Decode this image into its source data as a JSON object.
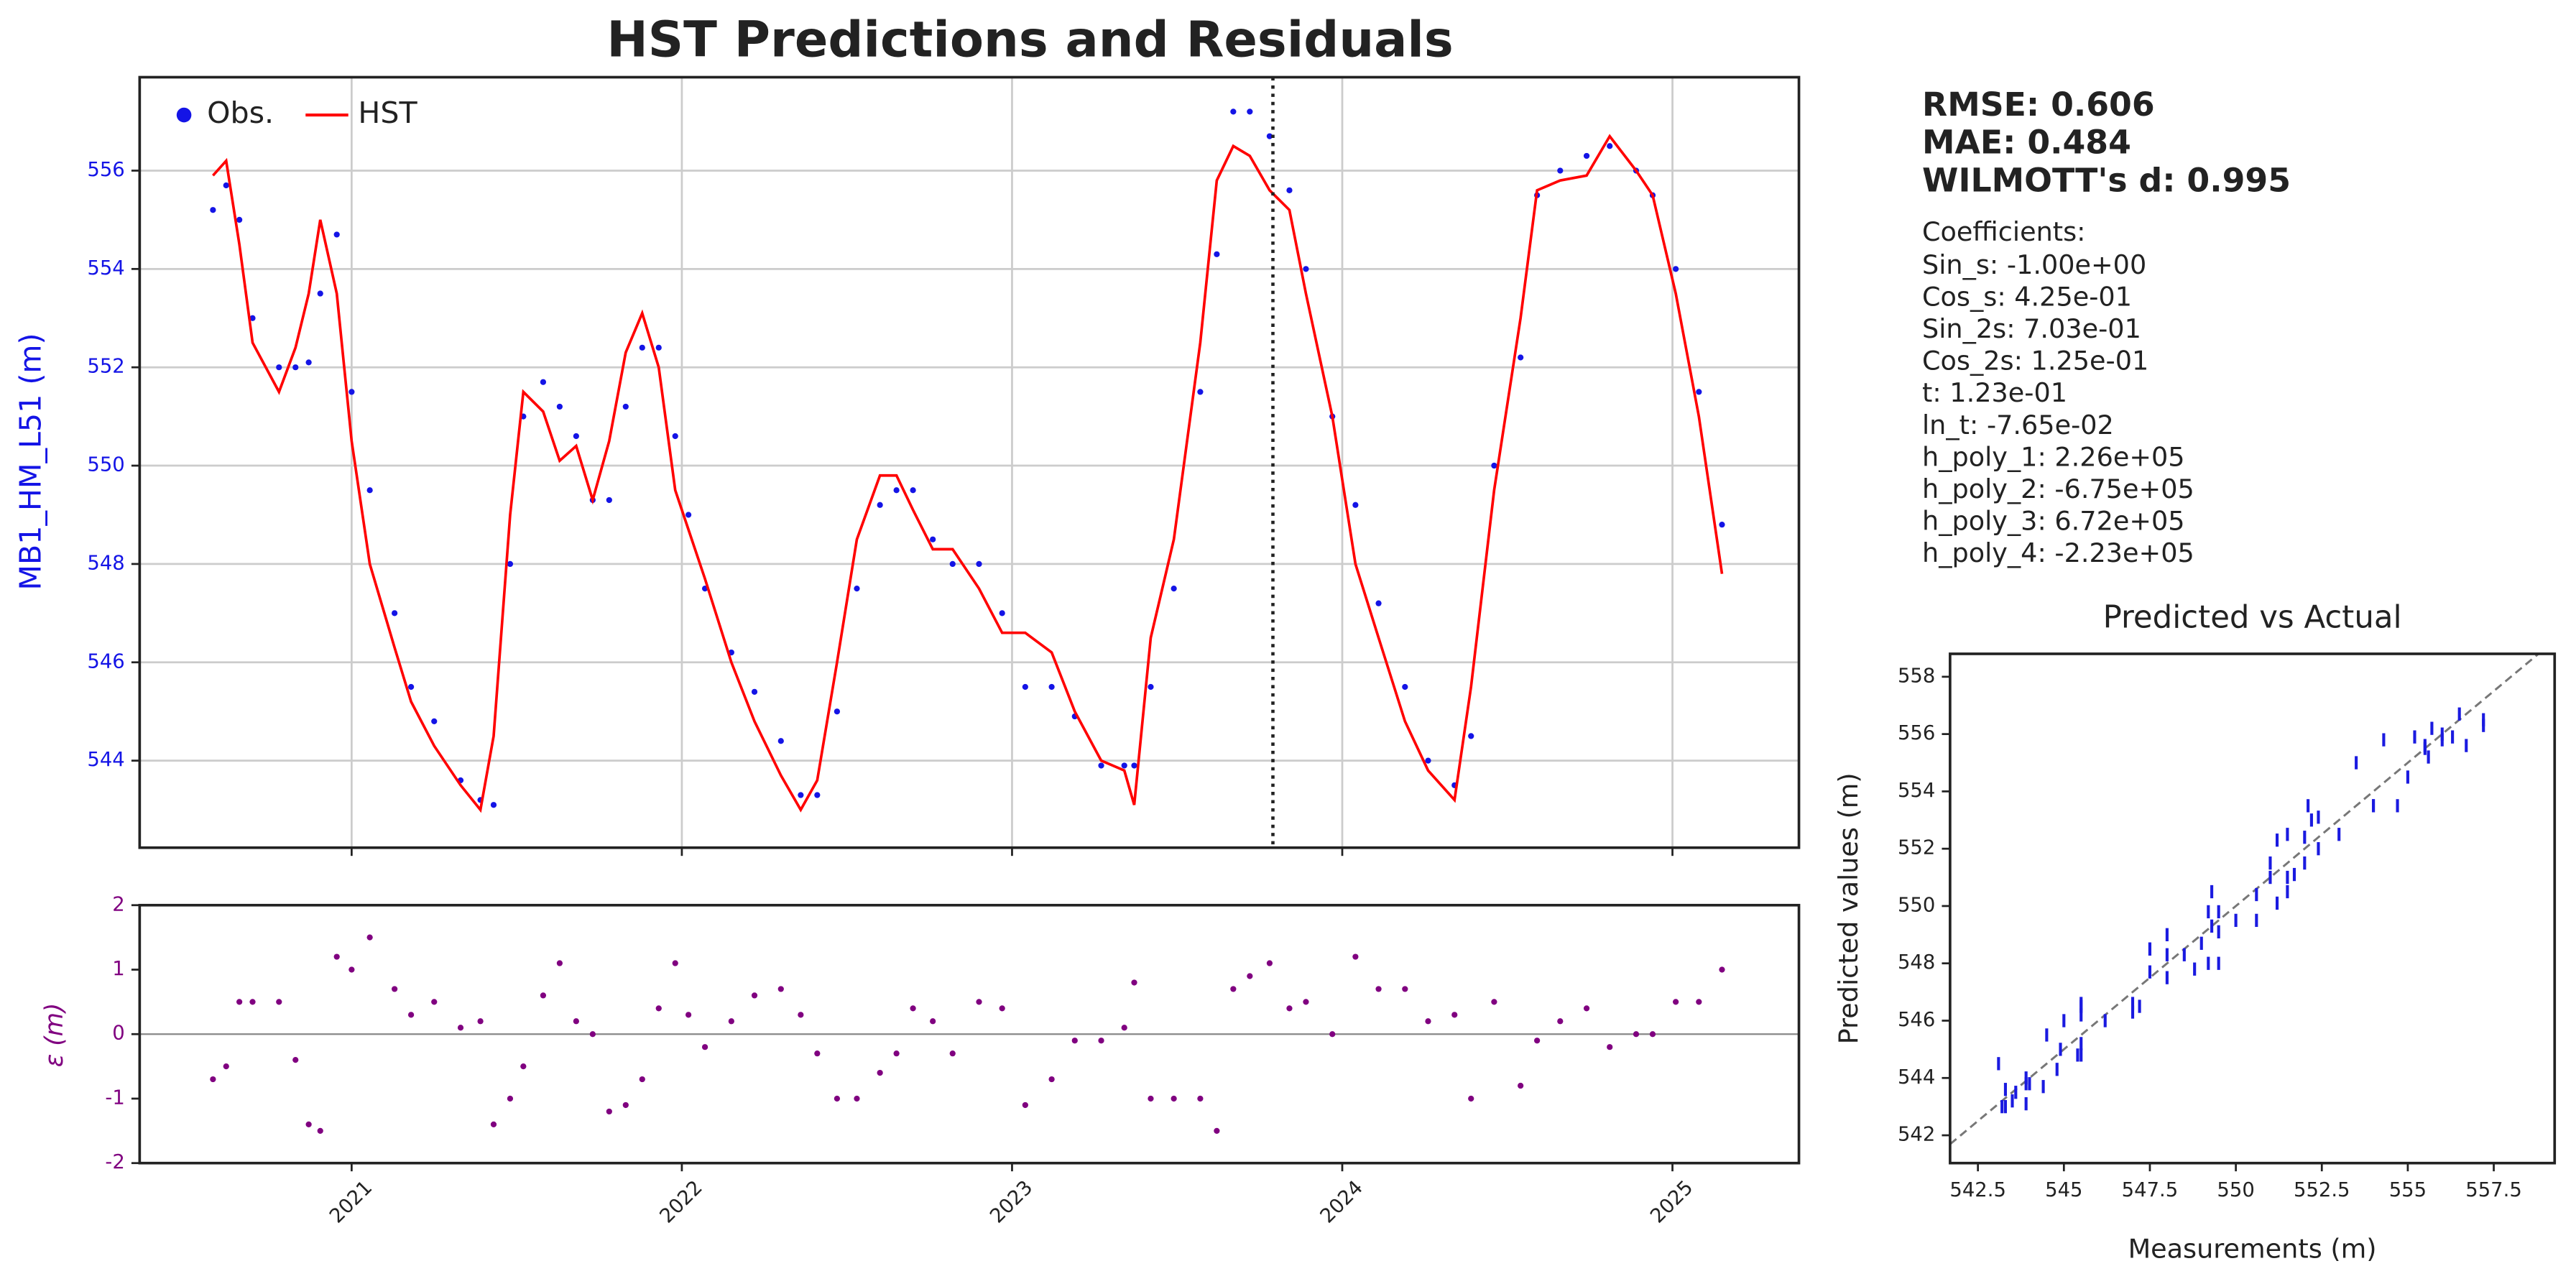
{
  "chart_data": [
    {
      "type": "line",
      "title": "HST Predictions and Residuals",
      "ylabel": "MB1_HM_L51 (m)",
      "x": [
        2020.58,
        2020.62,
        2020.66,
        2020.7,
        2020.78,
        2020.83,
        2020.87,
        2020.905,
        2020.955,
        2021.0,
        2021.055,
        2021.13,
        2021.18,
        2021.25,
        2021.33,
        2021.39,
        2021.43,
        2021.48,
        2021.52,
        2021.58,
        2021.63,
        2021.68,
        2021.73,
        2021.78,
        2021.83,
        2021.88,
        2021.93,
        2021.98,
        2022.02,
        2022.07,
        2022.15,
        2022.22,
        2022.3,
        2022.36,
        2022.41,
        2022.47,
        2022.53,
        2022.6,
        2022.65,
        2022.7,
        2022.76,
        2022.82,
        2022.9,
        2022.97,
        2023.04,
        2023.12,
        2023.19,
        2023.27,
        2023.34,
        2023.37,
        2023.42,
        2023.49,
        2023.57,
        2023.62,
        2023.67,
        2023.72,
        2023.78,
        2023.84,
        2023.89,
        2023.97,
        2024.04,
        2024.11,
        2024.19,
        2024.26,
        2024.34,
        2024.39,
        2024.46,
        2024.54,
        2024.59,
        2024.66,
        2024.74,
        2024.81,
        2024.89,
        2024.94,
        2025.01,
        2025.08,
        2025.15
      ],
      "series": [
        {
          "name": "Obs.",
          "color": "#1414e6",
          "mode": "markers",
          "values": [
            555.2,
            555.7,
            555.0,
            553.0,
            552.0,
            552.0,
            552.1,
            553.5,
            554.7,
            551.5,
            549.5,
            547.0,
            545.5,
            544.8,
            543.6,
            543.2,
            543.1,
            548.0,
            551.0,
            551.7,
            551.2,
            550.6,
            549.3,
            549.3,
            551.2,
            552.4,
            552.4,
            550.6,
            549.0,
            547.5,
            546.2,
            545.4,
            544.4,
            543.3,
            543.3,
            545.0,
            547.5,
            549.2,
            549.5,
            549.5,
            548.5,
            548.0,
            548.0,
            547.0,
            545.5,
            545.5,
            544.9,
            543.9,
            543.9,
            543.9,
            545.5,
            547.5,
            551.5,
            554.3,
            557.2,
            557.2,
            556.7,
            555.6,
            554.0,
            551.0,
            549.2,
            547.2,
            545.5,
            544.0,
            543.5,
            544.5,
            550.0,
            552.2,
            555.5,
            556.0,
            556.3,
            556.5,
            556.0,
            555.5,
            554.0,
            551.5,
            548.8
          ]
        },
        {
          "name": "HST",
          "color": "#ff0000",
          "mode": "lines",
          "values": [
            555.9,
            556.2,
            554.5,
            552.5,
            551.5,
            552.4,
            553.5,
            555.0,
            553.5,
            550.5,
            548.0,
            546.3,
            545.2,
            544.3,
            543.5,
            543.0,
            544.5,
            549.0,
            551.5,
            551.1,
            550.1,
            550.4,
            549.3,
            550.5,
            552.3,
            553.1,
            552.0,
            549.5,
            548.7,
            547.7,
            546.0,
            544.8,
            543.7,
            543.0,
            543.6,
            546.0,
            548.5,
            549.8,
            549.8,
            549.1,
            548.3,
            548.3,
            547.5,
            546.6,
            546.6,
            546.2,
            545.0,
            544.0,
            543.8,
            543.1,
            546.5,
            548.5,
            552.5,
            555.8,
            556.5,
            556.3,
            555.6,
            555.2,
            553.5,
            551.0,
            548.0,
            546.5,
            544.8,
            543.8,
            543.2,
            545.5,
            549.5,
            553.0,
            555.6,
            555.8,
            555.9,
            556.7,
            556.0,
            555.5,
            553.5,
            551.0,
            547.8
          ]
        }
      ],
      "xlim": [
        2020.358,
        2025.383
      ],
      "ylim": [
        542.23,
        557.9
      ],
      "xticks": [
        2021,
        2022,
        2023,
        2024,
        2025
      ],
      "yticks": [
        544,
        546,
        548,
        550,
        552,
        554,
        556
      ],
      "grid": true,
      "legend": "upper left",
      "vline_x": 2023.79
    },
    {
      "type": "scatter",
      "ylabel": "ε (m)",
      "color": "#800080",
      "x": [
        2020.58,
        2020.62,
        2020.66,
        2020.7,
        2020.78,
        2020.83,
        2020.87,
        2020.905,
        2020.955,
        2021.0,
        2021.055,
        2021.13,
        2021.18,
        2021.25,
        2021.33,
        2021.39,
        2021.43,
        2021.48,
        2021.52,
        2021.58,
        2021.63,
        2021.68,
        2021.73,
        2021.78,
        2021.83,
        2021.88,
        2021.93,
        2021.98,
        2022.02,
        2022.07,
        2022.15,
        2022.22,
        2022.3,
        2022.36,
        2022.41,
        2022.47,
        2022.53,
        2022.6,
        2022.65,
        2022.7,
        2022.76,
        2022.82,
        2022.9,
        2022.97,
        2023.04,
        2023.12,
        2023.19,
        2023.27,
        2023.34,
        2023.37,
        2023.42,
        2023.49,
        2023.57,
        2023.62,
        2023.67,
        2023.72,
        2023.78,
        2023.84,
        2023.89,
        2023.97,
        2024.04,
        2024.11,
        2024.19,
        2024.26,
        2024.34,
        2024.39,
        2024.46,
        2024.54,
        2024.59,
        2024.66,
        2024.74,
        2024.81,
        2024.89,
        2024.94,
        2025.01,
        2025.08,
        2025.15
      ],
      "values": [
        -0.7,
        -0.5,
        0.5,
        0.5,
        0.5,
        -0.4,
        -1.4,
        -1.5,
        1.2,
        1.0,
        1.5,
        0.7,
        0.3,
        0.5,
        0.1,
        0.2,
        -1.4,
        -1.0,
        -0.5,
        0.6,
        1.1,
        0.2,
        0.0,
        -1.2,
        -1.1,
        -0.7,
        0.4,
        1.1,
        0.3,
        -0.2,
        0.2,
        0.6,
        0.7,
        0.3,
        -0.3,
        -1.0,
        -1.0,
        -0.6,
        -0.3,
        0.4,
        0.2,
        -0.3,
        0.5,
        0.4,
        -1.1,
        -0.7,
        -0.1,
        -0.1,
        0.1,
        0.8,
        -1.0,
        -1.0,
        -1.0,
        -1.5,
        0.7,
        0.9,
        1.1,
        0.4,
        0.5,
        0.0,
        1.2,
        0.7,
        0.7,
        0.2,
        0.3,
        -1.0,
        0.5,
        -0.8,
        -0.1,
        0.2,
        0.4,
        -0.2,
        0.0,
        0.0,
        0.5,
        0.5,
        1.0
      ],
      "xlim": [
        2020.358,
        2025.383
      ],
      "ylim": [
        -2,
        2
      ],
      "xticks": [
        2021,
        2022,
        2023,
        2024,
        2025
      ],
      "yticks": [
        -2,
        -1,
        0,
        1,
        2
      ],
      "zero_line": true
    },
    {
      "type": "scatter",
      "title": "Predicted vs Actual",
      "xlabel": "Measurements (m)",
      "ylabel": "Predicted values (m)",
      "color": "#1a1ae0",
      "x": [
        555.2,
        555.7,
        555.0,
        553.0,
        552.0,
        552.0,
        552.1,
        553.5,
        554.7,
        551.5,
        549.5,
        547.0,
        545.5,
        544.8,
        543.6,
        543.2,
        543.1,
        548.0,
        551.0,
        551.7,
        551.2,
        550.6,
        549.3,
        549.3,
        551.2,
        552.4,
        552.4,
        550.6,
        549.0,
        547.5,
        546.2,
        545.4,
        544.4,
        543.3,
        543.3,
        545.0,
        547.5,
        549.2,
        549.5,
        549.5,
        548.5,
        548.0,
        548.0,
        547.0,
        545.5,
        545.5,
        544.9,
        543.9,
        543.9,
        543.9,
        545.5,
        547.5,
        551.5,
        554.3,
        557.2,
        557.2,
        556.7,
        555.6,
        554.0,
        551.0,
        549.2,
        547.2,
        545.5,
        544.0,
        543.5,
        544.5,
        550.0,
        552.2,
        555.5,
        556.0,
        556.3,
        556.5,
        556.0,
        555.5,
        554.0,
        551.5,
        548.8
      ],
      "values": [
        555.9,
        556.2,
        554.5,
        552.5,
        551.5,
        552.4,
        553.5,
        555.0,
        553.5,
        550.5,
        548.0,
        546.3,
        545.2,
        544.3,
        543.5,
        543.0,
        544.5,
        549.0,
        551.5,
        551.1,
        550.1,
        550.4,
        549.3,
        550.5,
        552.3,
        553.1,
        552.0,
        549.5,
        548.7,
        547.7,
        546.0,
        544.8,
        543.7,
        543.0,
        543.6,
        546.0,
        548.5,
        549.8,
        549.8,
        549.1,
        548.3,
        548.3,
        547.5,
        546.6,
        546.6,
        546.2,
        545.0,
        544.0,
        543.8,
        543.1,
        546.5,
        548.5,
        552.5,
        555.8,
        556.5,
        556.3,
        555.6,
        555.2,
        553.5,
        551.0,
        548.0,
        546.5,
        544.8,
        543.8,
        543.2,
        545.5,
        549.5,
        553.0,
        555.6,
        555.8,
        555.9,
        556.7,
        556.0,
        555.5,
        553.5,
        551.0,
        547.8
      ],
      "xlim": [
        541.69,
        559.27
      ],
      "ylim": [
        541.03,
        558.8
      ],
      "xticks": [
        542.5,
        545.0,
        547.5,
        550.0,
        552.5,
        555.0,
        557.5
      ],
      "yticks": [
        542,
        544,
        546,
        548,
        550,
        552,
        554,
        556,
        558
      ],
      "identity_line": true
    }
  ],
  "metrics": [
    "RMSE: 0.606",
    "MAE: 0.484",
    "WILMOTT's d: 0.995"
  ],
  "coefficients": {
    "title": "Coefficients:",
    "items": [
      "Sin_s: -1.00e+00",
      "Cos_s: 4.25e-01",
      "Sin_2s: 7.03e-01",
      "Cos_2s: 1.25e-01",
      "t: 1.23e-01",
      "ln_t: -7.65e-02",
      "h_poly_1: 2.26e+05",
      "h_poly_2: -6.75e+05",
      "h_poly_3: 6.72e+05",
      "h_poly_4: -2.23e+05"
    ]
  }
}
